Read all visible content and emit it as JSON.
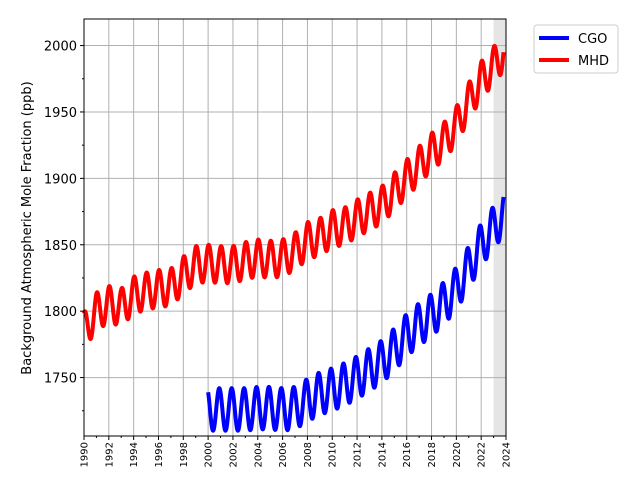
{
  "chart_data": {
    "type": "line",
    "title": "",
    "xlabel": "",
    "ylabel": "Background Atmospheric Mole Fraction (ppb)",
    "xlim": [
      1990,
      2024
    ],
    "ylim": [
      1706,
      2020
    ],
    "x_ticks": [
      "1990",
      "1992",
      "1994",
      "1996",
      "1998",
      "2000",
      "2002",
      "2004",
      "2006",
      "2008",
      "2010",
      "2012",
      "2014",
      "2016",
      "2018",
      "2020",
      "2022",
      "2024"
    ],
    "y_ticks": [
      1750,
      1800,
      1850,
      1900,
      1950,
      2000
    ],
    "grid": true,
    "legend_position": "outside-top-right",
    "shaded_region": {
      "x_start": 2023.0,
      "x_end": 2024.0,
      "color": "#e5e5e5"
    },
    "series": [
      {
        "name": "CGO",
        "color": "#0000ff",
        "x": [
          2000,
          2001,
          2002,
          2003,
          2004,
          2005,
          2006,
          2007,
          2008,
          2009,
          2010,
          2011,
          2012,
          2013,
          2014,
          2015,
          2016,
          2017,
          2018,
          2019,
          2020,
          2021,
          2022,
          2023,
          2023.8
        ],
        "mean": [
          1726,
          1726,
          1726,
          1726,
          1727,
          1727,
          1726,
          1727,
          1733,
          1738,
          1741,
          1745,
          1750,
          1756,
          1762,
          1771,
          1782,
          1790,
          1797,
          1806,
          1817,
          1833,
          1850,
          1863,
          1873
        ],
        "amplitude": 16,
        "phase": 0.9
      },
      {
        "name": "MHD",
        "color": "#ff0000",
        "x": [
          1990,
          1991,
          1992,
          1993,
          1994,
          1995,
          1996,
          1997,
          1998,
          1999,
          2000,
          2001,
          2002,
          2003,
          2004,
          2005,
          2006,
          2007,
          2008,
          2009,
          2010,
          2011,
          2012,
          2013,
          2014,
          2015,
          2016,
          2017,
          2018,
          2019,
          2020,
          2021,
          2022,
          2023,
          2023.8
        ],
        "mean": [
          1785,
          1800,
          1805,
          1803,
          1812,
          1815,
          1817,
          1818,
          1827,
          1835,
          1836,
          1835,
          1835,
          1838,
          1840,
          1839,
          1840,
          1845,
          1853,
          1856,
          1862,
          1864,
          1870,
          1875,
          1880,
          1890,
          1900,
          1910,
          1920,
          1928,
          1940,
          1958,
          1974,
          1985,
          1995
        ],
        "amplitude": 14,
        "phase": 0.05
      }
    ]
  }
}
